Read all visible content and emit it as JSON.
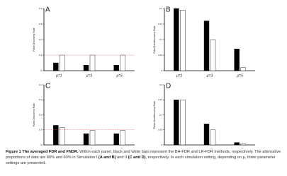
{
  "chart_data": [
    {
      "type": "bar",
      "label": "A",
      "ylabel": "False Discovery Rate",
      "categories": [
        "μ=1",
        "μ=3",
        "μ=5"
      ],
      "series": [
        {
          "color": "#000000",
          "values": [
            0.05,
            0.035,
            0.035
          ]
        },
        {
          "color": "#ffffff",
          "values": [
            0.1,
            0.1,
            0.1
          ]
        }
      ],
      "ylim": [
        0,
        0.4
      ],
      "yticks": [
        0,
        0.1,
        0.2,
        0.3,
        0.4
      ],
      "reference_line": 0.1,
      "reference_color": "#e06060"
    },
    {
      "type": "bar",
      "label": "B",
      "ylabel": "False Nondiscovery Rate",
      "categories": [
        "μ=1",
        "μ=3",
        "μ=5"
      ],
      "series": [
        {
          "color": "#000000",
          "values": [
            0.2,
            0.16,
            0.07
          ]
        },
        {
          "color": "#ffffff",
          "values": [
            0.195,
            0.1,
            0.01
          ]
        }
      ],
      "ylim": [
        0,
        0.2
      ],
      "yticks": [
        0,
        0.05,
        0.1,
        0.15,
        0.2
      ]
    },
    {
      "type": "bar",
      "label": "C",
      "ylabel": "False Discovery Rate",
      "categories": [
        "μ=1",
        "μ=3",
        "μ=5"
      ],
      "series": [
        {
          "color": "#000000",
          "values": [
            0.13,
            0.075,
            0.075
          ]
        },
        {
          "color": "#ffffff",
          "values": [
            0.115,
            0.095,
            0.095
          ]
        }
      ],
      "ylim": [
        0,
        0.4
      ],
      "yticks": [
        0,
        0.1,
        0.2,
        0.3,
        0.4
      ],
      "reference_line": 0.1,
      "reference_color": "#e06060"
    },
    {
      "type": "bar",
      "label": "D",
      "ylabel": "False Nondiscovery Rate",
      "categories": [
        "μ=1",
        "μ=3",
        "μ=5"
      ],
      "series": [
        {
          "color": "#000000",
          "values": [
            0.15,
            0.07,
            0.008
          ]
        },
        {
          "color": "#ffffff",
          "values": [
            0.15,
            0.05,
            0.003
          ]
        }
      ],
      "ylim": [
        0,
        0.2
      ],
      "yticks": [
        0,
        0.05,
        0.1,
        0.15,
        0.2
      ]
    }
  ],
  "caption": {
    "title": "Figure 1 The averaged FDR and FNDR.",
    "segments": [
      " Within each panel, black and white bars represent the BH-FDR and LR-FDR methods, respectively. The alternative proportions of data are 80% and 60% in Simulation I ",
      "(A and B)",
      " and II ",
      "(C and D)",
      ", respectively. In each simulation setting, depending on μ, three parameter settings are presented."
    ]
  }
}
